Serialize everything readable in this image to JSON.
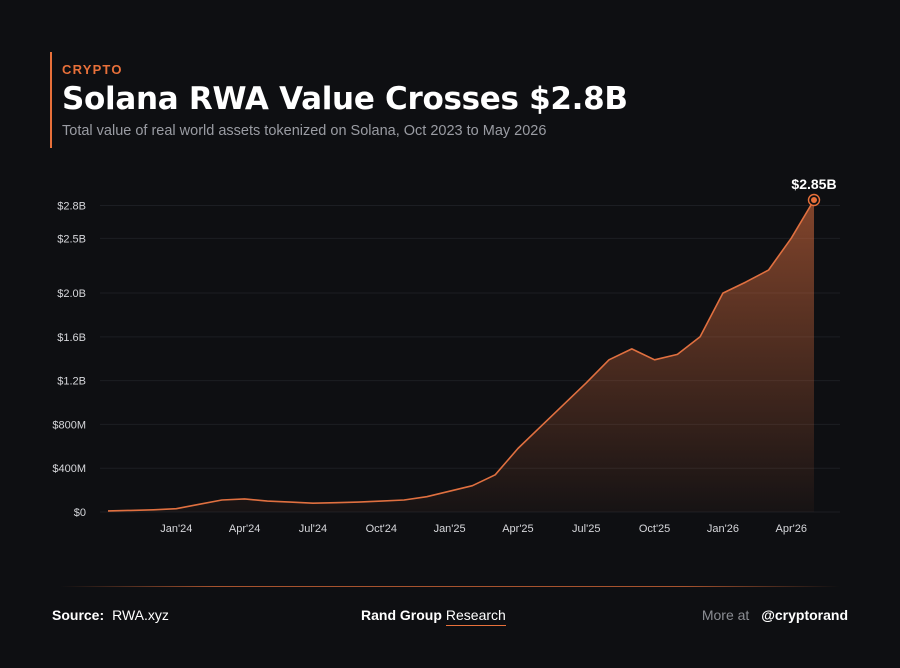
{
  "header": {
    "kicker": "CRYPTO",
    "title": "Solana RWA Value Crosses $2.8B",
    "subtitle": "Total value of real world assets tokenized on Solana, Oct 2023 to May 2026"
  },
  "footer": {
    "source_label": "Source:",
    "source_value": "RWA.xyz",
    "brand_bold": "Rand Group",
    "brand_regular": "Research",
    "more_label": "More at",
    "handle": "@cryptorand"
  },
  "colors": {
    "background": "#0e0f12",
    "accent": "#e8703a",
    "line": "#e07040",
    "muted_text": "#9a9ca3"
  },
  "chart_data": {
    "type": "area",
    "title": "",
    "xlabel": "",
    "ylabel": "",
    "ylim": [
      0,
      2850000000
    ],
    "y_ticks": [
      {
        "value": 0,
        "label": "$0"
      },
      {
        "value": 400000000,
        "label": "$400M"
      },
      {
        "value": 800000000,
        "label": "$800M"
      },
      {
        "value": 1200000000,
        "label": "$1.2B"
      },
      {
        "value": 1600000000,
        "label": "$1.6B"
      },
      {
        "value": 2000000000,
        "label": "$2.0B"
      },
      {
        "value": 2500000000,
        "label": "$2.5B"
      },
      {
        "value": 2800000000,
        "label": "$2.8B"
      }
    ],
    "x_ticks": [
      {
        "value": 3,
        "label": "Jan'24"
      },
      {
        "value": 6,
        "label": "Apr'24"
      },
      {
        "value": 9,
        "label": "Jul'24"
      },
      {
        "value": 12,
        "label": "Oct'24"
      },
      {
        "value": 15,
        "label": "Jan'25"
      },
      {
        "value": 18,
        "label": "Apr'25"
      },
      {
        "value": 21,
        "label": "Jul'25"
      },
      {
        "value": 24,
        "label": "Oct'25"
      },
      {
        "value": 27,
        "label": "Jan'26"
      },
      {
        "value": 30,
        "label": "Apr'26"
      }
    ],
    "x_domain": [
      0,
      31
    ],
    "grid": true,
    "series": [
      {
        "values": [
          [
            0,
            10000000
          ],
          [
            1,
            15000000
          ],
          [
            2,
            20000000
          ],
          [
            3,
            30000000
          ],
          [
            4,
            70000000
          ],
          [
            5,
            110000000
          ],
          [
            6,
            120000000
          ],
          [
            7,
            100000000
          ],
          [
            8,
            90000000
          ],
          [
            9,
            80000000
          ],
          [
            10,
            85000000
          ],
          [
            11,
            90000000
          ],
          [
            12,
            100000000
          ],
          [
            13,
            110000000
          ],
          [
            14,
            140000000
          ],
          [
            15,
            190000000
          ],
          [
            16,
            240000000
          ],
          [
            17,
            340000000
          ],
          [
            18,
            580000000
          ],
          [
            19,
            780000000
          ],
          [
            20,
            980000000
          ],
          [
            21,
            1180000000
          ],
          [
            22,
            1390000000
          ],
          [
            23,
            1490000000
          ],
          [
            24,
            1390000000
          ],
          [
            25,
            1440000000
          ],
          [
            26,
            1600000000
          ],
          [
            27,
            2000000000
          ],
          [
            28,
            2100000000
          ],
          [
            29,
            2210000000
          ],
          [
            30,
            2500000000
          ],
          [
            31,
            2850000000
          ]
        ]
      }
    ],
    "annotations": [
      {
        "x": 31,
        "y": 2850000000,
        "label": "$2.85B"
      }
    ]
  }
}
